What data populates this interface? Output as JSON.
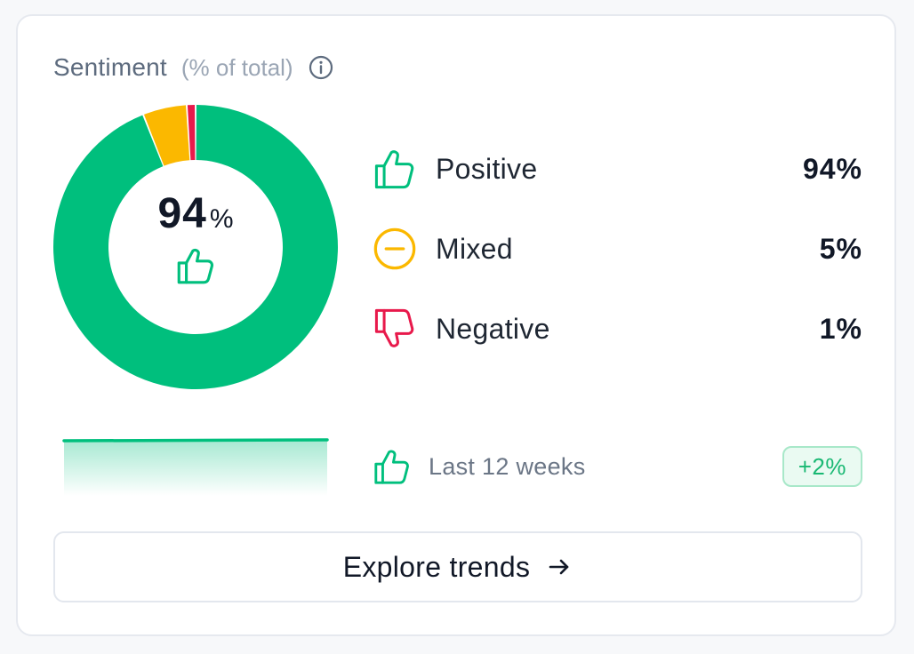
{
  "card": {
    "title": "Sentiment",
    "subtitle": "(% of total)",
    "info_icon": "info-icon"
  },
  "summary": {
    "value": "94",
    "unit": "%",
    "icon": "thumbs-up-icon"
  },
  "colors": {
    "positive": "#00bf7d",
    "mixed": "#fbb800",
    "negative": "#e8194b"
  },
  "legend": [
    {
      "label": "Positive",
      "value": "94%",
      "icon": "thumbs-up-icon"
    },
    {
      "label": "Mixed",
      "value": "5%",
      "icon": "minus-circle-icon"
    },
    {
      "label": "Negative",
      "value": "1%",
      "icon": "thumbs-down-icon"
    }
  ],
  "chart_data": {
    "type": "pie",
    "categories": [
      "Positive",
      "Mixed",
      "Negative"
    ],
    "values": [
      94,
      5,
      1
    ]
  },
  "trend": {
    "label": "Last 12 weeks",
    "change": "+2%",
    "icon": "thumbs-up-icon"
  },
  "cta": {
    "label": "Explore trends",
    "icon": "arrow-right-icon"
  }
}
